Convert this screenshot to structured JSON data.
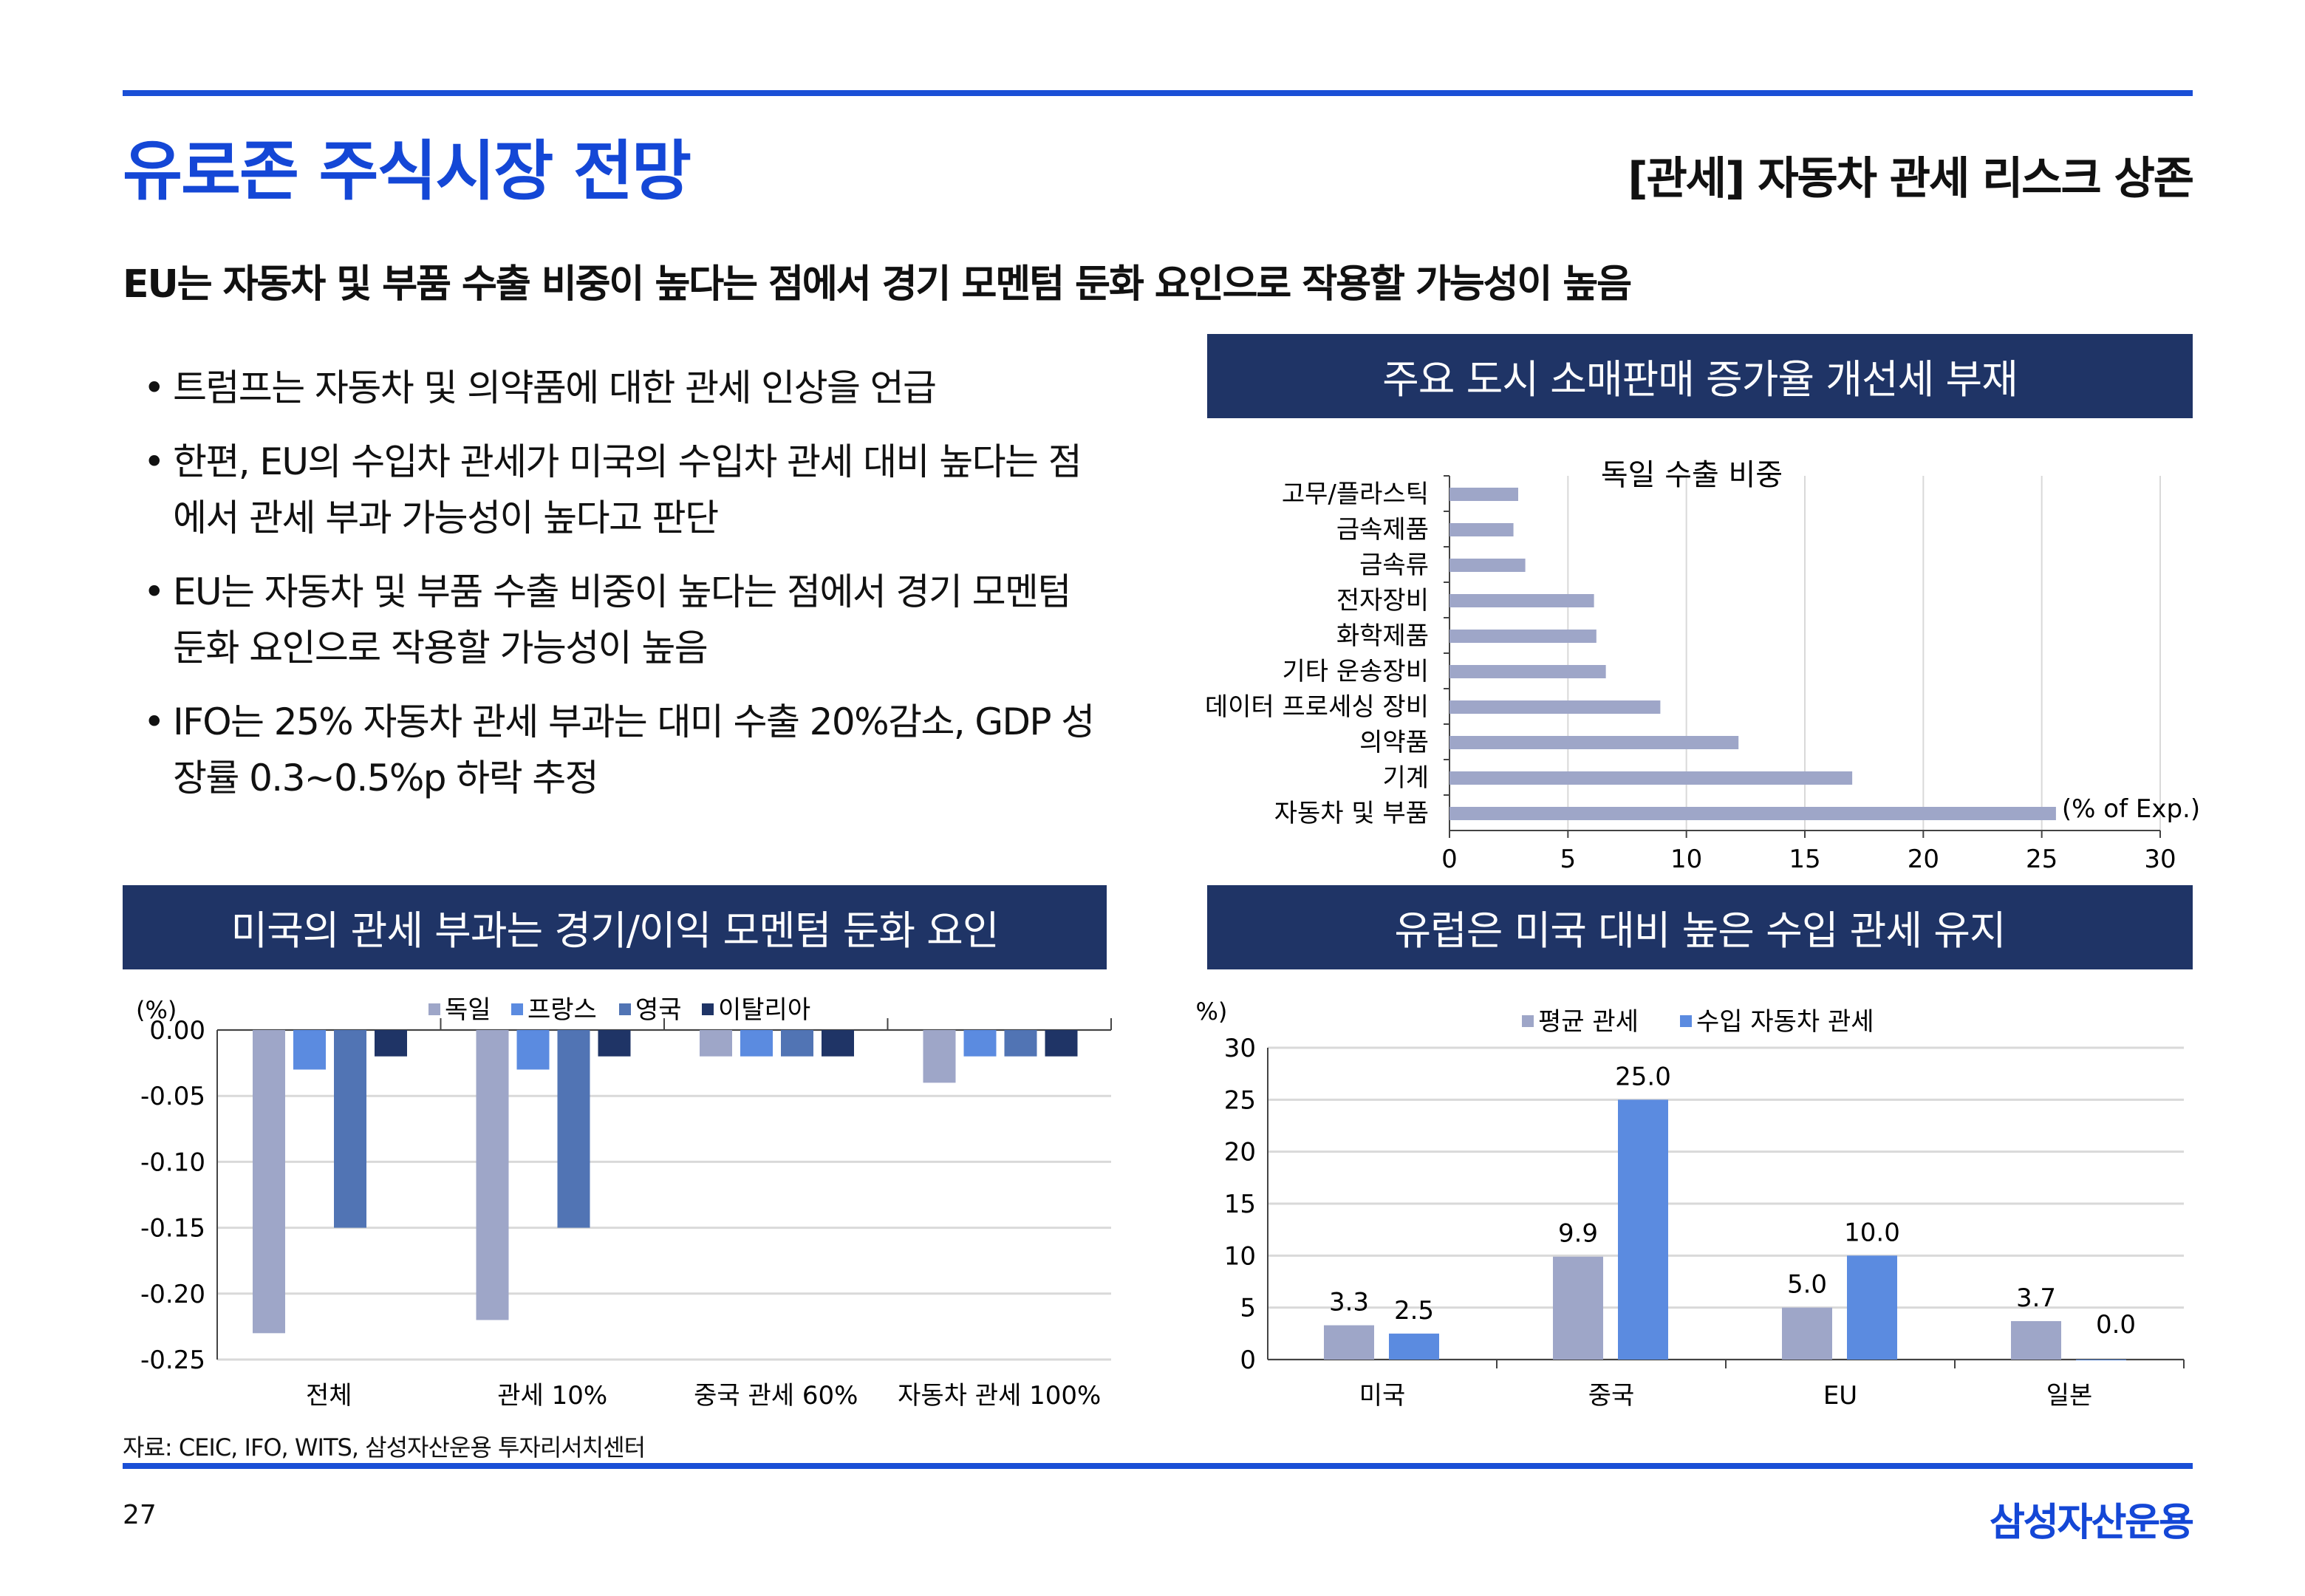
{
  "header": {
    "title": "유로존 주식시장 전망",
    "section": "[관세] 자동차 관세 리스크 상존"
  },
  "subtitle": "EU는 자동차 및 부품 수출 비중이 높다는 점에서 경기 모멘텀 둔화 요인으로 작용할 가능성이 높음",
  "bullets": [
    "트럼프는 자동차 및 의약품에 대한 관세 인상을 언급",
    "한편, EU의 수입차 관세가 미국의 수입차 관세 대비 높다는 점에서 관세 부과 가능성이 높다고 판단",
    "EU는 자동차 및 부품 수출 비중이 높다는 점에서 경기 모멘텀 둔화 요인으로 작용할 가능성이 높음",
    "IFO는 25% 자동차 관세 부과는 대미 수출 20%감소, GDP 성장률 0.3~0.5%p 하락 추정"
  ],
  "bullet_symbol": "•",
  "panels": {
    "top_right": "주요 도시 소매판매 증가율 개선세 부재",
    "bottom_left": "미국의 관세 부과는 경기/이익 모멘텀 둔화 요인",
    "bottom_right": "유럽은 미국 대비 높은 수입 관세 유지"
  },
  "chart_data": [
    {
      "type": "bar",
      "orientation": "horizontal",
      "title": "독일 수출 비중",
      "unit_label": "(% of Exp.)",
      "categories": [
        "고무/플라스틱",
        "금속제품",
        "금속류",
        "전자장비",
        "화학제품",
        "기타 운송장비",
        "데이터 프로세싱 장비",
        "의약품",
        "기계",
        "자동차 및 부품"
      ],
      "values": [
        2.9,
        2.7,
        3.2,
        6.1,
        6.2,
        6.6,
        8.9,
        12.2,
        17.0,
        25.6
      ],
      "xlim": [
        0,
        30
      ],
      "ticks": [
        "0",
        "5",
        "10",
        "15",
        "20",
        "25",
        "30"
      ],
      "color": "#9ea6c8",
      "grid": true
    },
    {
      "type": "bar",
      "unit_label": "(%)",
      "categories": [
        "전체",
        "관세 10%",
        "중국 관세 60%",
        "자동차 관세 100%"
      ],
      "series": [
        {
          "name": "독일",
          "color": "#9ea6c8",
          "values": [
            -0.23,
            -0.22,
            -0.02,
            -0.04
          ]
        },
        {
          "name": "프랑스",
          "color": "#5b8be0",
          "values": [
            -0.03,
            -0.03,
            -0.02,
            -0.02
          ]
        },
        {
          "name": "영국",
          "color": "#5174b4",
          "values": [
            -0.15,
            -0.15,
            -0.02,
            -0.02
          ]
        },
        {
          "name": "이탈리아",
          "color": "#1f3466",
          "values": [
            -0.02,
            -0.02,
            -0.02,
            -0.02
          ]
        }
      ],
      "ylim": [
        -0.25,
        0
      ],
      "ticks": [
        "0.00",
        "-0.05",
        "-0.10",
        "-0.15",
        "-0.20",
        "-0.25"
      ],
      "legend": "top-center",
      "grid": true
    },
    {
      "type": "bar",
      "unit_label": "(%)",
      "categories": [
        "미국",
        "중국",
        "EU",
        "일본"
      ],
      "series": [
        {
          "name": "평균 관세",
          "color": "#9ea6c8",
          "values": [
            3.3,
            9.9,
            5.0,
            3.7
          ],
          "labels": [
            "3.3",
            "9.9",
            "5.0",
            "3.7"
          ]
        },
        {
          "name": "수입 자동차 관세",
          "color": "#5b8be0",
          "values": [
            2.5,
            25.0,
            10.0,
            0.0
          ],
          "labels": [
            "2.5",
            "25.0",
            "10.0",
            "0.0"
          ]
        }
      ],
      "ylim": [
        0,
        30
      ],
      "ticks": [
        "0",
        "5",
        "10",
        "15",
        "20",
        "25",
        "30"
      ],
      "legend": "top-center",
      "grid": true
    }
  ],
  "footer": {
    "source": "자료: CEIC, IFO, WITS, 삼성자산운용 투자리서치센터",
    "page_number": "27",
    "logo": "삼성자산운용"
  }
}
